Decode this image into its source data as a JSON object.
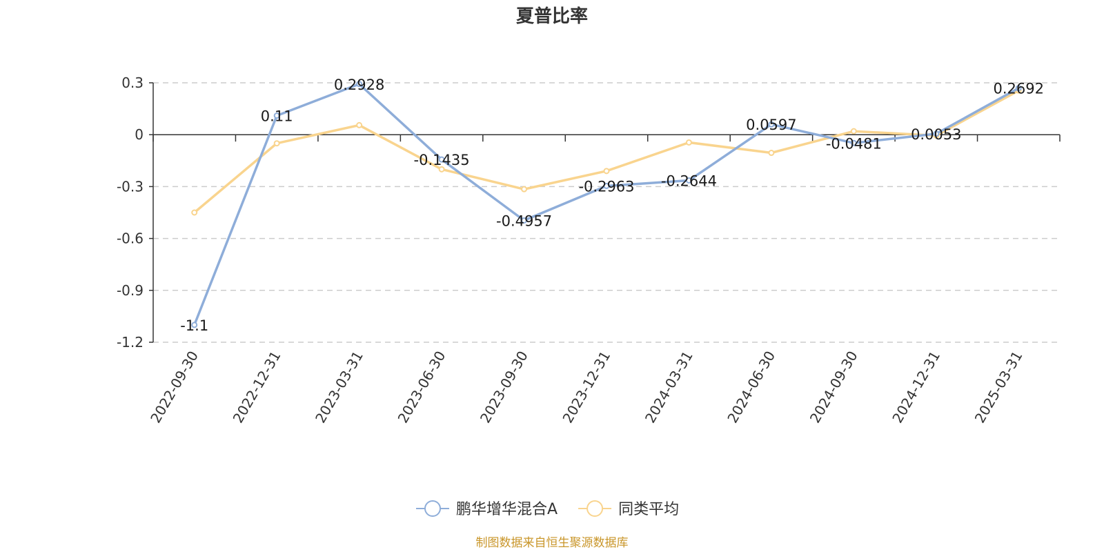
{
  "chart_data": {
    "type": "line",
    "title": "夏普比率",
    "categories": [
      "2022-09-30",
      "2022-12-31",
      "2023-03-31",
      "2023-06-30",
      "2023-09-30",
      "2023-12-31",
      "2024-03-31",
      "2024-06-30",
      "2024-09-30",
      "2024-12-31",
      "2025-03-31"
    ],
    "series": [
      {
        "name": "鹏华增华混合A",
        "color": "#8eadd9",
        "values": [
          -1.1,
          0.11,
          0.2928,
          -0.1435,
          -0.4957,
          -0.2963,
          -0.2644,
          0.0597,
          -0.0481,
          0.0053,
          0.2692
        ],
        "labels": [
          "-1.1",
          "0.11",
          "0.2928",
          "-0.1435",
          "-0.4957",
          "-0.2963",
          "-0.2644",
          "0.0597",
          "-0.0481",
          "0.0053",
          "0.2692"
        ]
      },
      {
        "name": "同类平均",
        "color": "#f9d48e",
        "values": [
          -0.45,
          -0.05,
          0.055,
          -0.2,
          -0.315,
          -0.21,
          -0.045,
          -0.105,
          0.02,
          -0.005,
          0.255
        ]
      }
    ],
    "y_ticks": [
      0.3,
      0,
      -0.3,
      -0.6,
      -0.9,
      -1.2
    ],
    "y_tick_labels": [
      "0.3",
      "0",
      "-0.3",
      "-0.6",
      "-0.9",
      "-1.2"
    ],
    "ylim": [
      -1.2,
      0.3
    ],
    "grid": "horizontal-dashed",
    "legend_position": "bottom-center",
    "xlabel": "",
    "ylabel": ""
  },
  "source_text": "制图数据来自恒生聚源数据库"
}
